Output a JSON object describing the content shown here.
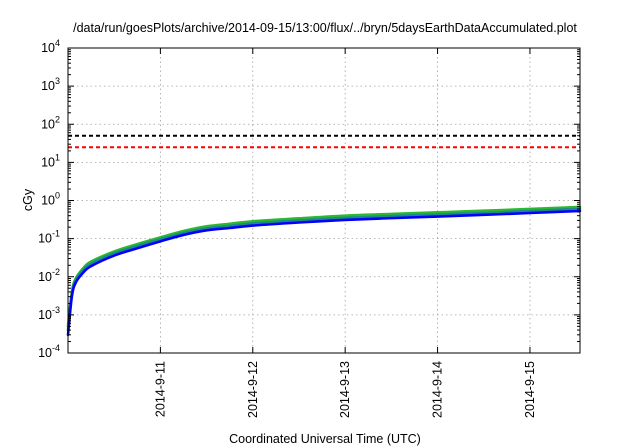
{
  "chart_data": {
    "type": "line",
    "title": "/data/run/goesPlots/archive/2014-09-15/13:00/flux/../bryn/5daysEarthDataAccumulated.plot",
    "xlabel": "Coordinated Universal Time (UTC)",
    "ylabel": "cGy",
    "y_scale": "log",
    "ylim": [
      0.0001,
      10000
    ],
    "y_ticks": [
      {
        "value": 0.0001,
        "base": "10",
        "exp": "-4"
      },
      {
        "value": 0.001,
        "base": "10",
        "exp": "-3"
      },
      {
        "value": 0.01,
        "base": "10",
        "exp": "-2"
      },
      {
        "value": 0.1,
        "base": "10",
        "exp": "-1"
      },
      {
        "value": 1,
        "base": "10",
        "exp": "0"
      },
      {
        "value": 10,
        "base": "10",
        "exp": "1"
      },
      {
        "value": 100,
        "base": "10",
        "exp": "2"
      },
      {
        "value": 1000,
        "base": "10",
        "exp": "3"
      },
      {
        "value": 10000,
        "base": "10",
        "exp": "4"
      }
    ],
    "xlim": [
      "2014-09-10T00:00",
      "2014-09-15T13:00"
    ],
    "x_ticks": [
      {
        "value": "2014-09-11T00:00",
        "label": "2014-9-11"
      },
      {
        "value": "2014-09-12T00:00",
        "label": "2014-9-12"
      },
      {
        "value": "2014-09-13T00:00",
        "label": "2014-9-13"
      },
      {
        "value": "2014-09-14T00:00",
        "label": "2014-9-14"
      },
      {
        "value": "2014-09-15T00:00",
        "label": "2014-9-15"
      }
    ],
    "grid": true,
    "reference_lines": [
      {
        "y": 50,
        "color": "#000000",
        "style": "dashed"
      },
      {
        "y": 25,
        "color": "#ff0000",
        "style": "dashed"
      }
    ],
    "series": [
      {
        "color": "#2db82d",
        "x": [
          "2014-09-10T00:00",
          "2014-09-10T01:00",
          "2014-09-10T02:00",
          "2014-09-10T04:00",
          "2014-09-10T06:00",
          "2014-09-10T12:00",
          "2014-09-10T18:00",
          "2014-09-11T00:00",
          "2014-09-11T06:00",
          "2014-09-11T12:00",
          "2014-09-11T18:00",
          "2014-09-12T00:00",
          "2014-09-12T12:00",
          "2014-09-13T00:00",
          "2014-09-13T12:00",
          "2014-09-14T00:00",
          "2014-09-14T12:00",
          "2014-09-15T00:00",
          "2014-09-15T13:00"
        ],
        "y": [
          0.0005,
          0.004,
          0.009,
          0.017,
          0.025,
          0.046,
          0.072,
          0.108,
          0.158,
          0.21,
          0.245,
          0.285,
          0.34,
          0.4,
          0.445,
          0.49,
          0.54,
          0.6,
          0.68
        ]
      },
      {
        "color": "#1a8a8a",
        "x": [
          "2014-09-10T00:00",
          "2014-09-10T01:00",
          "2014-09-10T02:00",
          "2014-09-10T04:00",
          "2014-09-10T06:00",
          "2014-09-10T12:00",
          "2014-09-10T18:00",
          "2014-09-11T00:00",
          "2014-09-11T06:00",
          "2014-09-11T12:00",
          "2014-09-11T18:00",
          "2014-09-12T00:00",
          "2014-09-12T12:00",
          "2014-09-13T00:00",
          "2014-09-13T12:00",
          "2014-09-14T00:00",
          "2014-09-14T12:00",
          "2014-09-15T00:00",
          "2014-09-15T13:00"
        ],
        "y": [
          0.0004,
          0.0035,
          0.008,
          0.015,
          0.022,
          0.041,
          0.064,
          0.096,
          0.14,
          0.185,
          0.215,
          0.25,
          0.3,
          0.35,
          0.39,
          0.43,
          0.47,
          0.53,
          0.6
        ]
      },
      {
        "color": "#0000ff",
        "x": [
          "2014-09-10T00:00",
          "2014-09-10T01:00",
          "2014-09-10T02:00",
          "2014-09-10T04:00",
          "2014-09-10T06:00",
          "2014-09-10T12:00",
          "2014-09-10T18:00",
          "2014-09-11T00:00",
          "2014-09-11T06:00",
          "2014-09-11T12:00",
          "2014-09-11T18:00",
          "2014-09-12T00:00",
          "2014-09-12T12:00",
          "2014-09-13T00:00",
          "2014-09-13T12:00",
          "2014-09-14T00:00",
          "2014-09-14T12:00",
          "2014-09-15T00:00",
          "2014-09-15T13:00"
        ],
        "y": [
          0.0003,
          0.003,
          0.007,
          0.013,
          0.019,
          0.036,
          0.056,
          0.085,
          0.125,
          0.165,
          0.19,
          0.22,
          0.265,
          0.31,
          0.345,
          0.38,
          0.42,
          0.47,
          0.53
        ]
      }
    ]
  }
}
